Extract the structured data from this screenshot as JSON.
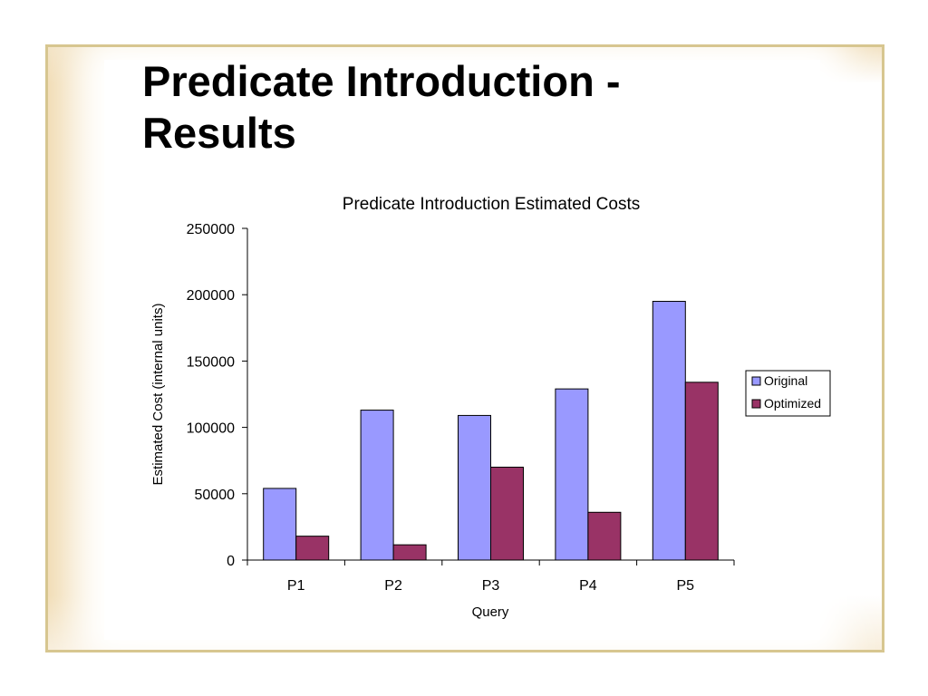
{
  "slide": {
    "title": "Predicate Introduction - Results"
  },
  "colors": {
    "frame_border": "#d7c690",
    "accent_glow": "#f1dcb4",
    "series_original": "#9999ff",
    "series_optimized": "#993366"
  },
  "chart_data": {
    "type": "bar",
    "title": "Predicate Introduction Estimated Costs",
    "xlabel": "Query",
    "ylabel": "Estimated Cost (internal units)",
    "categories": [
      "P1",
      "P2",
      "P3",
      "P4",
      "P5"
    ],
    "ylim": [
      0,
      250000
    ],
    "yticks": [
      "0",
      "50000",
      "100000",
      "150000",
      "200000",
      "250000"
    ],
    "grid": false,
    "legend_position": "right",
    "series": [
      {
        "name": "Original",
        "values": [
          54000,
          113000,
          109000,
          129000,
          195000
        ]
      },
      {
        "name": "Optimized",
        "values": [
          18000,
          11500,
          70000,
          36000,
          134000
        ]
      }
    ]
  }
}
